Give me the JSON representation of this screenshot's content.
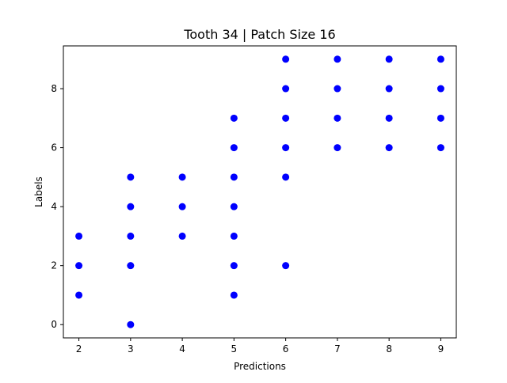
{
  "chart_data": {
    "type": "scatter",
    "title": "Tooth 34 | Patch Size 16",
    "xlabel": "Predictions",
    "ylabel": "Labels",
    "xlim": [
      1.7,
      9.3
    ],
    "ylim": [
      -0.45,
      9.45
    ],
    "xticks": [
      2,
      3,
      4,
      5,
      6,
      7,
      8,
      9
    ],
    "yticks": [
      0,
      2,
      4,
      6,
      8
    ],
    "grid": false,
    "marker_color": "#0000ff",
    "points": [
      [
        2,
        1
      ],
      [
        2,
        2
      ],
      [
        2,
        3
      ],
      [
        3,
        0
      ],
      [
        3,
        2
      ],
      [
        3,
        3
      ],
      [
        3,
        4
      ],
      [
        3,
        5
      ],
      [
        4,
        3
      ],
      [
        4,
        4
      ],
      [
        4,
        5
      ],
      [
        5,
        1
      ],
      [
        5,
        2
      ],
      [
        5,
        3
      ],
      [
        5,
        4
      ],
      [
        5,
        5
      ],
      [
        5,
        6
      ],
      [
        5,
        7
      ],
      [
        6,
        2
      ],
      [
        6,
        5
      ],
      [
        6,
        6
      ],
      [
        6,
        7
      ],
      [
        6,
        8
      ],
      [
        6,
        9
      ],
      [
        7,
        6
      ],
      [
        7,
        7
      ],
      [
        7,
        8
      ],
      [
        7,
        9
      ],
      [
        8,
        6
      ],
      [
        8,
        7
      ],
      [
        8,
        8
      ],
      [
        8,
        9
      ],
      [
        9,
        6
      ],
      [
        9,
        7
      ],
      [
        9,
        8
      ],
      [
        9,
        9
      ]
    ]
  }
}
